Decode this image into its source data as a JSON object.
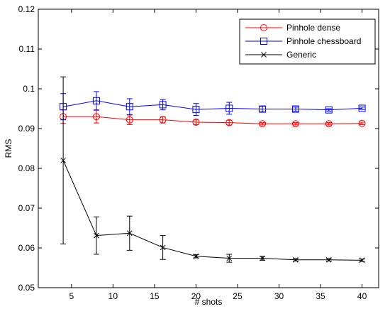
{
  "chart_data": {
    "type": "line",
    "xlabel": "# shots",
    "ylabel": "RMS",
    "xlim": [
      1,
      42
    ],
    "ylim": [
      0.05,
      0.12
    ],
    "xticks": [
      5,
      10,
      15,
      20,
      25,
      30,
      35,
      40
    ],
    "yticks": [
      0.05,
      0.06,
      0.07,
      0.08,
      0.09,
      0.1,
      0.11,
      0.12
    ],
    "xtick_labels": [
      "5",
      "10",
      "15",
      "20",
      "25",
      "30",
      "35",
      "40"
    ],
    "ytick_labels": [
      "0.05",
      "0.06",
      "0.07",
      "0.08",
      "0.09",
      "0.1",
      "0.11",
      "0.12"
    ],
    "grid": false,
    "legend_position": "top-right",
    "x": [
      4,
      8,
      12,
      16,
      20,
      24,
      28,
      32,
      36,
      40
    ],
    "series": [
      {
        "name": "Pinhole dense",
        "color": "#ff0000",
        "marker": "circle",
        "values": [
          0.093,
          0.093,
          0.0922,
          0.0922,
          0.0916,
          0.0915,
          0.0912,
          0.0912,
          0.0912,
          0.0913
        ],
        "errors": [
          0.0017,
          0.0016,
          0.0012,
          0.0008,
          0.0006,
          0.0006,
          0.0003,
          0.0003,
          0.0003,
          0.0003
        ]
      },
      {
        "name": "Pinhole chessboard",
        "color": "#0000ff",
        "marker": "square",
        "values": [
          0.0955,
          0.097,
          0.0955,
          0.096,
          0.0948,
          0.0951,
          0.0949,
          0.0949,
          0.0947,
          0.0951
        ],
        "errors": [
          0.0033,
          0.0023,
          0.002,
          0.0013,
          0.0015,
          0.0015,
          0.0007,
          0.0005,
          0.0003,
          0.0003
        ]
      },
      {
        "name": "Generic",
        "color": "#000000",
        "marker": "x",
        "values": [
          0.082,
          0.0631,
          0.0637,
          0.0601,
          0.0579,
          0.0574,
          0.0574,
          0.057,
          0.057,
          0.0569
        ],
        "errors": [
          0.021,
          0.0047,
          0.0043,
          0.003,
          0.0004,
          0.001,
          0.0005,
          0.0003,
          0.0003,
          0.0003
        ]
      }
    ]
  }
}
